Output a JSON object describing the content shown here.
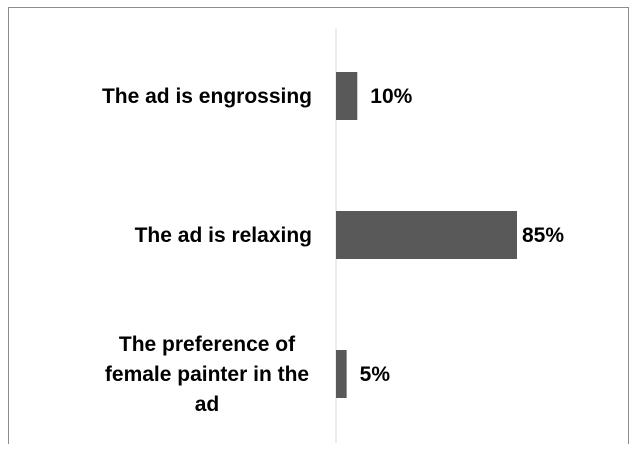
{
  "chart_data": {
    "type": "bar",
    "orientation": "horizontal",
    "categories": [
      [
        "The ad is engrossing"
      ],
      [
        "The ad is relaxing"
      ],
      [
        "The preference of",
        "female painter in the",
        "ad"
      ]
    ],
    "values": [
      10,
      85,
      5
    ],
    "data_labels": [
      "10%",
      "85%",
      "5%"
    ],
    "xlim": [
      0,
      100
    ],
    "grid": false,
    "legend": "none",
    "bar_color": "#595959"
  }
}
